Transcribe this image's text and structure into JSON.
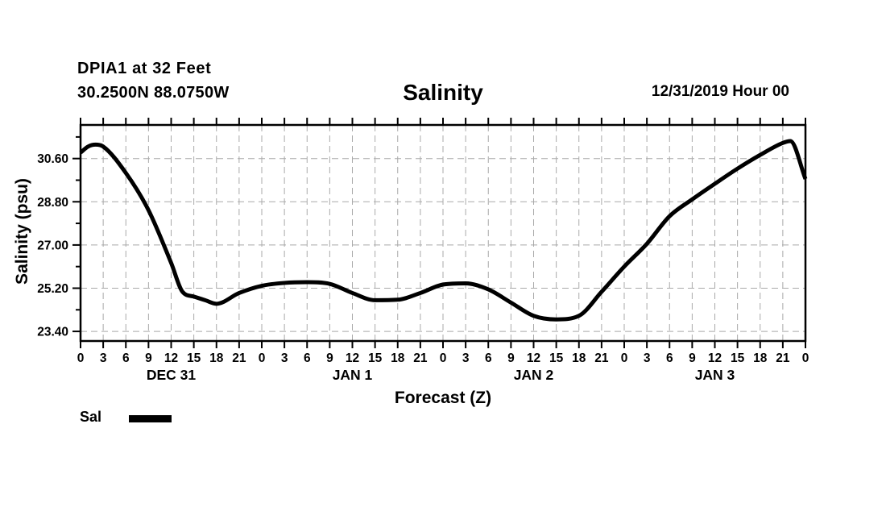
{
  "header": {
    "station_line": "DPIA1 at 32 Feet",
    "coords_line": "30.2500N 88.0750W",
    "title": "Salinity",
    "datetime": "12/31/2019 Hour 00"
  },
  "axes": {
    "xlabel": "Forecast (Z)",
    "ylabel": "Salinity (psu)"
  },
  "legend": {
    "label": "Sal"
  },
  "chart_data": {
    "type": "line",
    "title": "Salinity",
    "subtitle_left": [
      "DPIA1 at 32 Feet",
      "30.2500N 88.0750W"
    ],
    "subtitle_right": "12/31/2019 Hour 00",
    "xlabel": "Forecast (Z)",
    "ylabel": "Salinity (psu)",
    "xlim_hours": [
      0,
      96
    ],
    "ylim": [
      23.0,
      32.0
    ],
    "y_major_ticks": [
      23.4,
      25.2,
      27.0,
      28.8,
      30.6
    ],
    "y_minor_ticks": [
      24.3,
      26.1,
      27.9,
      29.7,
      31.5
    ],
    "x_tick_step_hours": 3,
    "x_tick_label_rule": "hour-of-day-mod-24",
    "day_labels": [
      {
        "label": "DEC 31",
        "center_hour": 12
      },
      {
        "label": "JAN 1",
        "center_hour": 36
      },
      {
        "label": "JAN 2",
        "center_hour": 60
      },
      {
        "label": "JAN 3",
        "center_hour": 84
      }
    ],
    "grid": {
      "vertical": "every-3-hours",
      "horizontal": "major-ticks-only",
      "style": "dashed",
      "color": "#a9a9a9"
    },
    "legend_position": "bottom-left",
    "series": [
      {
        "name": "Sal",
        "color": "#000000",
        "line_width": 5,
        "x_hours": [
          0,
          1,
          2,
          3,
          6,
          9,
          12,
          13.5,
          15,
          16.5,
          18,
          21,
          24,
          27,
          30,
          33,
          36,
          39,
          42,
          45,
          48,
          51,
          54,
          57,
          60,
          63,
          66,
          69,
          72,
          75,
          78,
          81,
          84,
          87,
          90,
          93,
          94,
          96
        ],
        "y_psu": [
          30.85,
          31.1,
          31.18,
          31.1,
          30.0,
          28.45,
          26.25,
          25.05,
          24.85,
          24.7,
          24.55,
          25.0,
          25.3,
          25.42,
          25.45,
          25.38,
          25.0,
          24.7,
          24.72,
          25.0,
          25.35,
          25.4,
          25.15,
          24.6,
          24.05,
          23.9,
          24.05,
          25.05,
          26.1,
          27.05,
          28.2,
          28.9,
          29.55,
          30.18,
          30.75,
          31.25,
          31.33,
          29.75
        ]
      }
    ]
  }
}
